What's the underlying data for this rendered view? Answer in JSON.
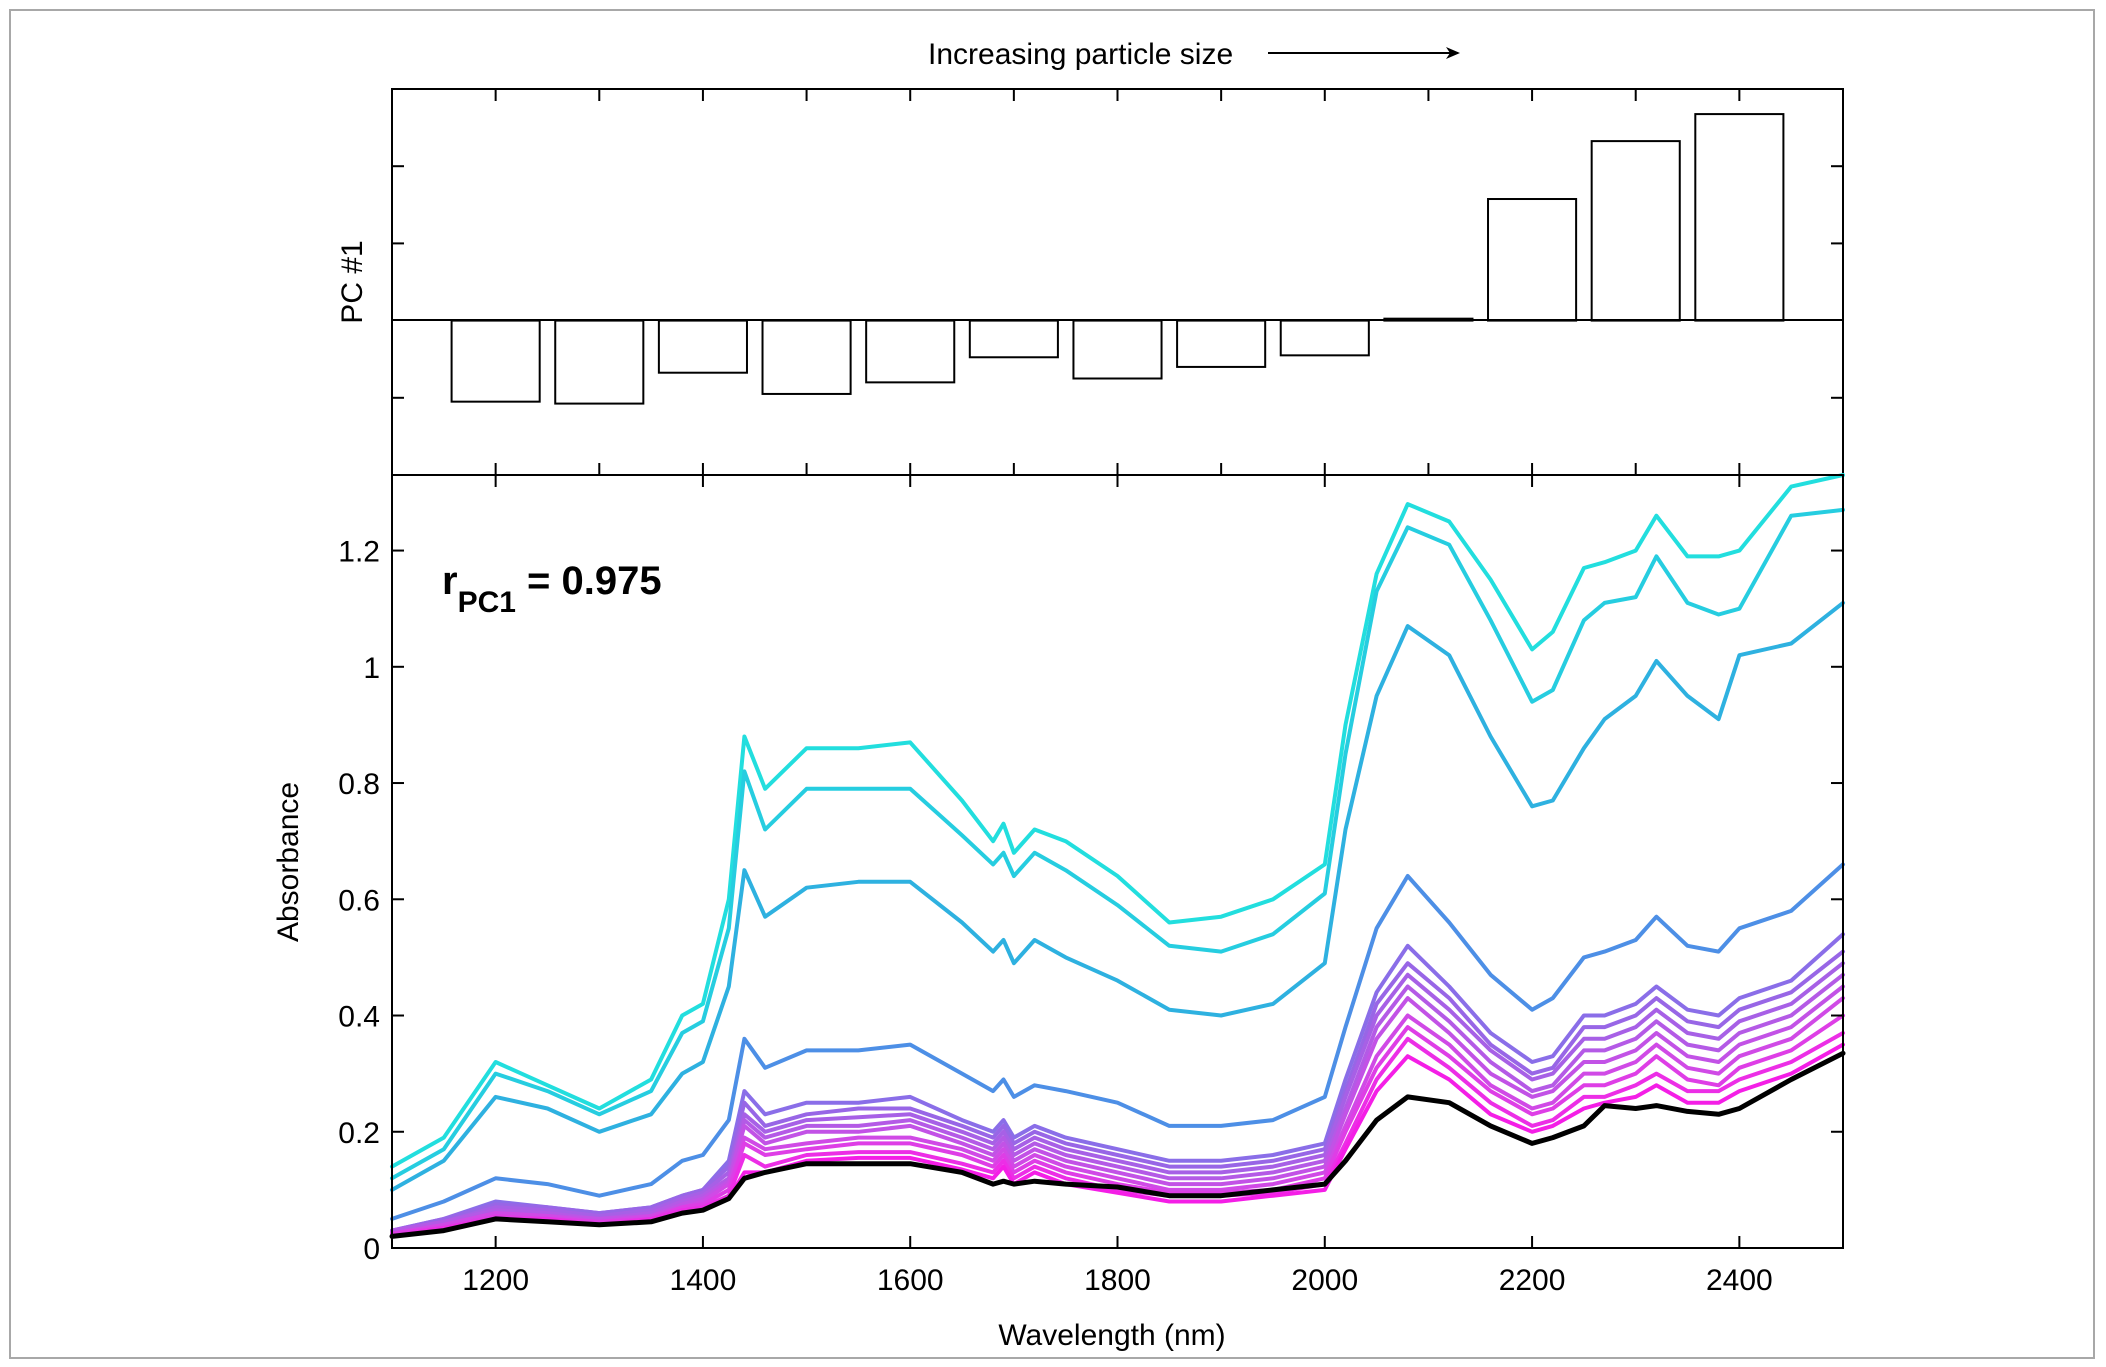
{
  "chart_data": [
    {
      "type": "bar",
      "panel": "top",
      "annotation": "Increasing particle size",
      "ylabel": "PC #1",
      "categories": [
        1200,
        1300,
        1400,
        1500,
        1600,
        1700,
        1800,
        1900,
        2000,
        2100,
        2200,
        2300,
        2400
      ],
      "values": [
        -0.42,
        -0.43,
        -0.27,
        -0.38,
        -0.32,
        -0.19,
        -0.3,
        -0.24,
        -0.18,
        0.01,
        0.63,
        0.93,
        1.07
      ],
      "ylim": [
        -0.8,
        1.2
      ],
      "xlim": [
        1100,
        2500
      ],
      "grid": false
    },
    {
      "type": "line",
      "panel": "bottom",
      "xlabel": "Wavelength (nm)",
      "ylabel": "Absorbance",
      "annotation_main": "r",
      "annotation_sub": "PC1",
      "annotation_value": " = 0.975",
      "xlim": [
        1100,
        2500
      ],
      "ylim": [
        0,
        1.33
      ],
      "x_ticks": [
        "1200",
        "1400",
        "1600",
        "1800",
        "2000",
        "2200",
        "2400"
      ],
      "y_ticks": [
        "0",
        "0.2",
        "0.4",
        "0.6",
        "0.8",
        "1",
        "1.2"
      ],
      "grid": false,
      "x": [
        1100,
        1150,
        1200,
        1250,
        1300,
        1350,
        1380,
        1400,
        1425,
        1440,
        1460,
        1500,
        1550,
        1600,
        1650,
        1680,
        1690,
        1700,
        1720,
        1750,
        1800,
        1850,
        1900,
        1950,
        2000,
        2020,
        2050,
        2080,
        2120,
        2160,
        2200,
        2220,
        2250,
        2270,
        2300,
        2320,
        2350,
        2380,
        2400,
        2450,
        2500
      ],
      "series": [
        {
          "color": "#22dede",
          "values": [
            0.14,
            0.19,
            0.32,
            0.28,
            0.24,
            0.29,
            0.4,
            0.42,
            0.6,
            0.88,
            0.79,
            0.86,
            0.86,
            0.87,
            0.77,
            0.7,
            0.73,
            0.68,
            0.72,
            0.7,
            0.64,
            0.56,
            0.57,
            0.6,
            0.66,
            0.9,
            1.16,
            1.28,
            1.25,
            1.15,
            1.03,
            1.06,
            1.17,
            1.18,
            1.2,
            1.26,
            1.19,
            1.19,
            1.2,
            1.31,
            1.33
          ]
        },
        {
          "color": "#26cde0",
          "values": [
            0.12,
            0.17,
            0.3,
            0.27,
            0.23,
            0.27,
            0.37,
            0.39,
            0.55,
            0.82,
            0.72,
            0.79,
            0.79,
            0.79,
            0.71,
            0.66,
            0.68,
            0.64,
            0.68,
            0.65,
            0.59,
            0.52,
            0.51,
            0.54,
            0.61,
            0.85,
            1.13,
            1.24,
            1.21,
            1.08,
            0.94,
            0.96,
            1.08,
            1.11,
            1.12,
            1.19,
            1.11,
            1.09,
            1.1,
            1.26,
            1.27
          ]
        },
        {
          "color": "#2eb1e0",
          "values": [
            0.1,
            0.15,
            0.26,
            0.24,
            0.2,
            0.23,
            0.3,
            0.32,
            0.45,
            0.65,
            0.57,
            0.62,
            0.63,
            0.63,
            0.56,
            0.51,
            0.53,
            0.49,
            0.53,
            0.5,
            0.46,
            0.41,
            0.4,
            0.42,
            0.49,
            0.72,
            0.95,
            1.07,
            1.02,
            0.88,
            0.76,
            0.77,
            0.86,
            0.91,
            0.95,
            1.01,
            0.95,
            0.91,
            1.02,
            1.04,
            1.11
          ]
        },
        {
          "color": "#4d8fe6",
          "values": [
            0.05,
            0.08,
            0.12,
            0.11,
            0.09,
            0.11,
            0.15,
            0.16,
            0.22,
            0.36,
            0.31,
            0.34,
            0.34,
            0.35,
            0.3,
            0.27,
            0.29,
            0.26,
            0.28,
            0.27,
            0.25,
            0.21,
            0.21,
            0.22,
            0.26,
            0.38,
            0.55,
            0.64,
            0.56,
            0.47,
            0.41,
            0.43,
            0.5,
            0.51,
            0.53,
            0.57,
            0.52,
            0.51,
            0.55,
            0.58,
            0.66
          ]
        },
        {
          "color": "#8a6ee8",
          "values": [
            0.03,
            0.05,
            0.08,
            0.07,
            0.06,
            0.07,
            0.09,
            0.1,
            0.15,
            0.27,
            0.23,
            0.25,
            0.25,
            0.26,
            0.22,
            0.2,
            0.22,
            0.19,
            0.21,
            0.19,
            0.17,
            0.15,
            0.15,
            0.16,
            0.18,
            0.29,
            0.44,
            0.52,
            0.45,
            0.37,
            0.32,
            0.33,
            0.4,
            0.4,
            0.42,
            0.45,
            0.41,
            0.4,
            0.43,
            0.46,
            0.54
          ]
        },
        {
          "color": "#9866e6",
          "values": [
            0.03,
            0.05,
            0.075,
            0.07,
            0.06,
            0.07,
            0.09,
            0.1,
            0.14,
            0.25,
            0.21,
            0.23,
            0.24,
            0.24,
            0.21,
            0.19,
            0.21,
            0.18,
            0.2,
            0.18,
            0.16,
            0.14,
            0.14,
            0.15,
            0.17,
            0.27,
            0.42,
            0.49,
            0.43,
            0.35,
            0.3,
            0.31,
            0.38,
            0.38,
            0.4,
            0.43,
            0.39,
            0.38,
            0.41,
            0.44,
            0.51
          ]
        },
        {
          "color": "#a760e6",
          "values": [
            0.03,
            0.045,
            0.07,
            0.065,
            0.055,
            0.065,
            0.085,
            0.095,
            0.13,
            0.23,
            0.2,
            0.22,
            0.225,
            0.23,
            0.2,
            0.18,
            0.2,
            0.17,
            0.19,
            0.17,
            0.15,
            0.13,
            0.13,
            0.14,
            0.16,
            0.26,
            0.4,
            0.47,
            0.41,
            0.34,
            0.29,
            0.3,
            0.36,
            0.36,
            0.38,
            0.41,
            0.37,
            0.36,
            0.39,
            0.42,
            0.49
          ]
        },
        {
          "color": "#b45ae6",
          "values": [
            0.03,
            0.045,
            0.065,
            0.06,
            0.05,
            0.06,
            0.08,
            0.09,
            0.12,
            0.22,
            0.19,
            0.21,
            0.21,
            0.22,
            0.19,
            0.17,
            0.19,
            0.16,
            0.18,
            0.16,
            0.14,
            0.12,
            0.12,
            0.13,
            0.15,
            0.24,
            0.38,
            0.45,
            0.39,
            0.32,
            0.27,
            0.28,
            0.34,
            0.34,
            0.36,
            0.39,
            0.35,
            0.34,
            0.37,
            0.4,
            0.47
          ]
        },
        {
          "color": "#c252e6",
          "values": [
            0.025,
            0.04,
            0.06,
            0.055,
            0.05,
            0.055,
            0.075,
            0.085,
            0.115,
            0.21,
            0.18,
            0.2,
            0.2,
            0.21,
            0.18,
            0.16,
            0.18,
            0.15,
            0.17,
            0.15,
            0.13,
            0.11,
            0.11,
            0.12,
            0.14,
            0.23,
            0.36,
            0.43,
            0.37,
            0.3,
            0.26,
            0.27,
            0.32,
            0.32,
            0.34,
            0.37,
            0.33,
            0.32,
            0.35,
            0.38,
            0.45
          ]
        },
        {
          "color": "#d04ae6",
          "values": [
            0.025,
            0.04,
            0.06,
            0.055,
            0.045,
            0.055,
            0.07,
            0.08,
            0.11,
            0.19,
            0.17,
            0.18,
            0.19,
            0.19,
            0.17,
            0.15,
            0.17,
            0.14,
            0.16,
            0.14,
            0.12,
            0.1,
            0.1,
            0.11,
            0.13,
            0.21,
            0.33,
            0.4,
            0.35,
            0.28,
            0.24,
            0.25,
            0.3,
            0.3,
            0.32,
            0.35,
            0.31,
            0.3,
            0.33,
            0.36,
            0.43
          ]
        },
        {
          "color": "#de3ee6",
          "values": [
            0.025,
            0.035,
            0.055,
            0.05,
            0.045,
            0.05,
            0.07,
            0.075,
            0.1,
            0.18,
            0.16,
            0.17,
            0.18,
            0.18,
            0.16,
            0.14,
            0.16,
            0.13,
            0.15,
            0.13,
            0.11,
            0.095,
            0.095,
            0.1,
            0.12,
            0.2,
            0.31,
            0.38,
            0.33,
            0.27,
            0.23,
            0.24,
            0.28,
            0.28,
            0.3,
            0.33,
            0.29,
            0.28,
            0.31,
            0.34,
            0.4
          ]
        },
        {
          "color": "#ec2ee6",
          "values": [
            0.02,
            0.035,
            0.05,
            0.05,
            0.04,
            0.05,
            0.065,
            0.07,
            0.09,
            0.16,
            0.14,
            0.16,
            0.165,
            0.165,
            0.145,
            0.13,
            0.15,
            0.12,
            0.14,
            0.12,
            0.1,
            0.09,
            0.09,
            0.095,
            0.11,
            0.18,
            0.29,
            0.36,
            0.31,
            0.25,
            0.21,
            0.22,
            0.26,
            0.26,
            0.28,
            0.3,
            0.27,
            0.27,
            0.29,
            0.32,
            0.37
          ]
        },
        {
          "color": "#f41ee6",
          "values": [
            0.02,
            0.03,
            0.05,
            0.045,
            0.04,
            0.045,
            0.06,
            0.065,
            0.085,
            0.13,
            0.13,
            0.15,
            0.155,
            0.155,
            0.135,
            0.12,
            0.14,
            0.11,
            0.13,
            0.11,
            0.095,
            0.08,
            0.08,
            0.09,
            0.1,
            0.17,
            0.27,
            0.33,
            0.29,
            0.23,
            0.2,
            0.21,
            0.24,
            0.25,
            0.26,
            0.28,
            0.25,
            0.25,
            0.27,
            0.3,
            0.35
          ]
        },
        {
          "color": "#000000",
          "values": [
            0.02,
            0.03,
            0.05,
            0.045,
            0.04,
            0.045,
            0.06,
            0.065,
            0.085,
            0.12,
            0.13,
            0.145,
            0.145,
            0.145,
            0.13,
            0.11,
            0.115,
            0.11,
            0.115,
            0.11,
            0.105,
            0.09,
            0.09,
            0.1,
            0.11,
            0.15,
            0.22,
            0.26,
            0.25,
            0.21,
            0.18,
            0.19,
            0.21,
            0.245,
            0.24,
            0.245,
            0.235,
            0.23,
            0.24,
            0.29,
            0.335
          ]
        }
      ]
    }
  ]
}
